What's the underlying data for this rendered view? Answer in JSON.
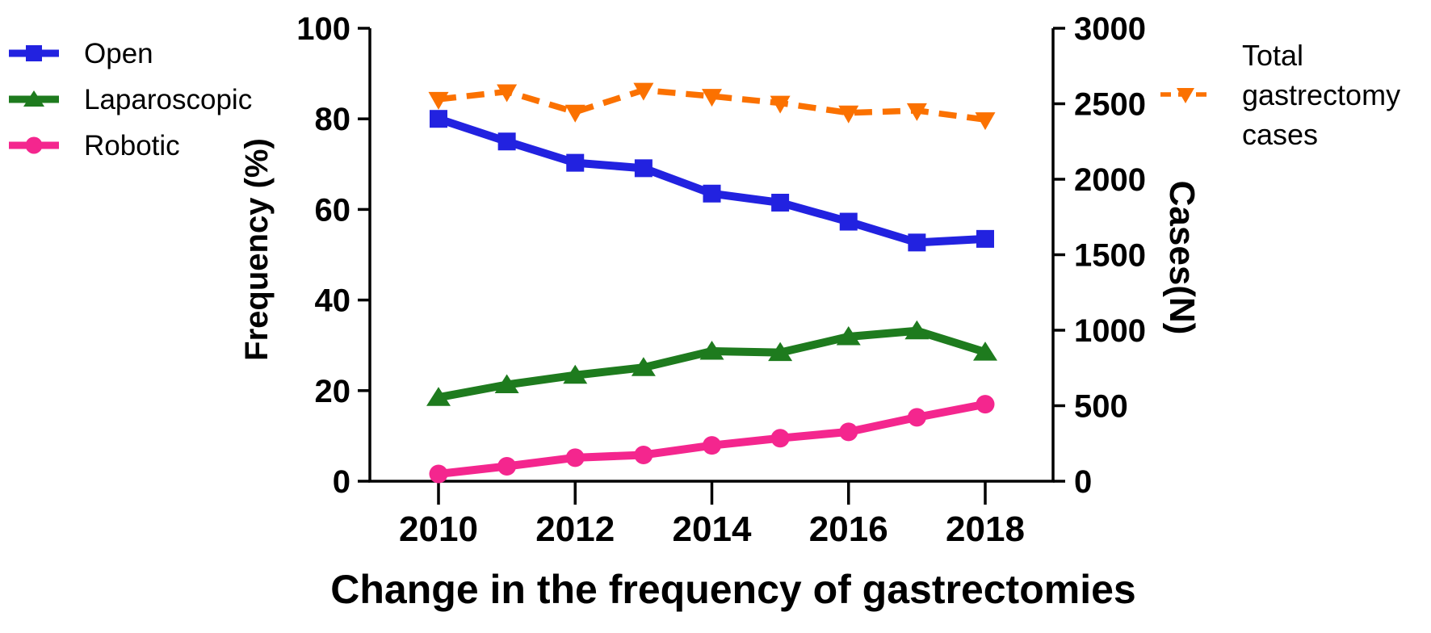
{
  "chart_data": {
    "type": "line",
    "title": "Change in the frequency of gastrectomies",
    "x": [
      2010,
      2011,
      2012,
      2013,
      2014,
      2015,
      2016,
      2017,
      2018
    ],
    "x_tick_labels": [
      "2010",
      "2012",
      "2014",
      "2016",
      "2018"
    ],
    "x_tick_values": [
      2010,
      2012,
      2014,
      2016,
      2018
    ],
    "left_axis": {
      "label": "Frequency (%)",
      "ticks": [
        0,
        20,
        40,
        60,
        80,
        100
      ],
      "range": [
        0,
        100
      ]
    },
    "right_axis": {
      "label": "Cases(N)",
      "ticks": [
        0,
        500,
        1000,
        1500,
        2000,
        2500,
        3000
      ],
      "range": [
        0,
        3000
      ]
    },
    "grid": false,
    "legend_position": "outside: left for frequency series, right for total cases",
    "series": [
      {
        "name": "Open",
        "axis": "left",
        "color": "#2222E0",
        "marker": "square",
        "dashed": false,
        "values": [
          80.0,
          75.0,
          70.3,
          69.1,
          63.5,
          61.5,
          57.3,
          52.7,
          53.5
        ]
      },
      {
        "name": "Laparoscopic",
        "axis": "left",
        "color": "#1E7B1E",
        "marker": "triangle-up",
        "dashed": false,
        "values": [
          18.5,
          21.3,
          23.4,
          25.1,
          28.7,
          28.4,
          31.9,
          33.2,
          28.5
        ]
      },
      {
        "name": "Robotic",
        "axis": "left",
        "color": "#F4268E",
        "marker": "circle",
        "dashed": false,
        "values": [
          1.6,
          3.3,
          5.2,
          5.8,
          7.9,
          9.5,
          10.9,
          14.1,
          17.0
        ]
      },
      {
        "name": "Total gastrectomy cases",
        "axis": "right",
        "color": "#FB7100",
        "marker": "triangle-down",
        "dashed": true,
        "values": [
          2530,
          2580,
          2445,
          2590,
          2550,
          2505,
          2440,
          2455,
          2395
        ]
      }
    ],
    "legend_left": [
      "Open",
      "Laparoscopic",
      "Robotic"
    ],
    "legend_right_lines": [
      "Total",
      "gastrectomy",
      "cases"
    ]
  }
}
